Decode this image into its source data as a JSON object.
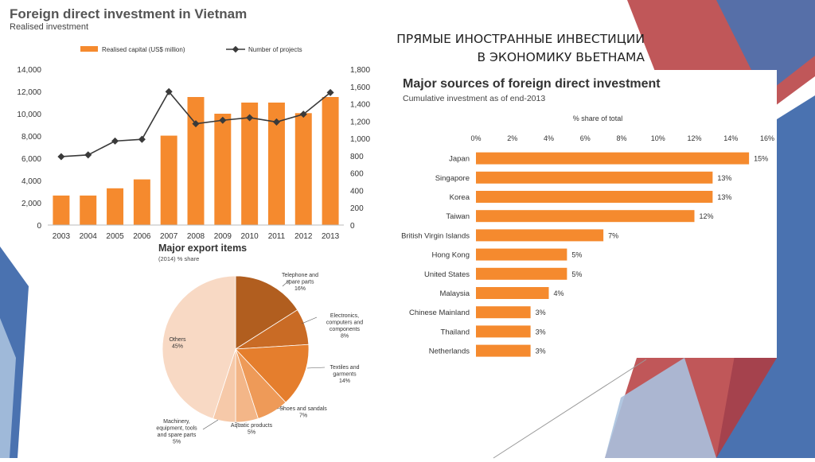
{
  "slide": {
    "title_line1": "ПРЯМЫЕ ИНОСТРАННЫЕ ИНВЕСТИЦИИ",
    "title_line2": "В ЭКОНОМИКУ ВЬЕТНАМА"
  },
  "colors": {
    "orange": "#F58A2E",
    "line": "#3a3a3a",
    "deco_blue": "#4a72b0",
    "deco_red": "#b53a3c",
    "deco_light_blue": "#a9c1de"
  },
  "chart_data": [
    {
      "type": "bar",
      "title": "Foreign direct investment in Vietnam",
      "subtitle": "Realised investment",
      "categories": [
        "2003",
        "2004",
        "2005",
        "2006",
        "2007",
        "2008",
        "2009",
        "2010",
        "2011",
        "2012",
        "2013"
      ],
      "series": [
        {
          "name": "Realised capital (US$ million)",
          "type": "bar",
          "axis": "left",
          "values": [
            2650,
            2650,
            3300,
            4100,
            8030,
            11500,
            10000,
            11000,
            11000,
            10050,
            11500
          ]
        },
        {
          "name": "Number of projects",
          "type": "line",
          "axis": "right",
          "values": [
            790,
            810,
            970,
            990,
            1540,
            1170,
            1210,
            1240,
            1190,
            1280,
            1530
          ]
        }
      ],
      "ylim": [
        0,
        14000
      ],
      "y_ticks": [
        "0",
        "2,000",
        "4,000",
        "6,000",
        "8,000",
        "10,000",
        "12,000",
        "14,000"
      ],
      "y2lim": [
        0,
        1800
      ],
      "y2_ticks": [
        "0",
        "200",
        "400",
        "600",
        "800",
        "1,000",
        "1,200",
        "1,400",
        "1,600",
        "1,800"
      ],
      "legend": "top"
    },
    {
      "type": "pie",
      "title": "Major export items",
      "subtitle": "(2014) % share",
      "slices": [
        {
          "label": [
            "Telephone and",
            "spare parts"
          ],
          "value": 16,
          "value_text": "16%",
          "color": "#B15E1F"
        },
        {
          "label": [
            "Electronics,",
            "computers and",
            "components"
          ],
          "value": 8,
          "value_text": "8%",
          "color": "#C96B25"
        },
        {
          "label": [
            "Textiles and",
            "garments"
          ],
          "value": 14,
          "value_text": "14%",
          "color": "#E57E2D"
        },
        {
          "label": [
            "Shoes and sandals"
          ],
          "value": 7,
          "value_text": "7%",
          "color": "#EE9A58"
        },
        {
          "label": [
            "Aquatic products"
          ],
          "value": 5,
          "value_text": "5%",
          "color": "#F3B688"
        },
        {
          "label": [
            "Machinery,",
            "equipment, tools",
            "and spare parts"
          ],
          "value": 5,
          "value_text": "5%",
          "color": "#F6C9A9"
        },
        {
          "label": [
            "Others"
          ],
          "value": 45,
          "value_text": "45%",
          "color": "#F8D9C4"
        }
      ]
    },
    {
      "type": "bar",
      "orientation": "horizontal",
      "title": "Major sources of foreign direct investment",
      "subtitle": "Cumulative investment as of end-2013",
      "xlabel": "% share of total",
      "xlim": [
        0,
        16
      ],
      "x_ticks": [
        "0%",
        "2%",
        "4%",
        "6%",
        "8%",
        "10%",
        "12%",
        "14%",
        "16%"
      ],
      "categories": [
        "Japan",
        "Singapore",
        "Korea",
        "Taiwan",
        "British Virgin Islands",
        "Hong Kong",
        "United States",
        "Malaysia",
        "Chinese Mainland",
        "Thailand",
        "Netherlands"
      ],
      "values": [
        15,
        13,
        13,
        12,
        7,
        5,
        5,
        4,
        3,
        3,
        3
      ],
      "value_labels": [
        "15%",
        "13%",
        "13%",
        "12%",
        "7%",
        "5%",
        "5%",
        "4%",
        "3%",
        "3%",
        "3%"
      ]
    }
  ]
}
